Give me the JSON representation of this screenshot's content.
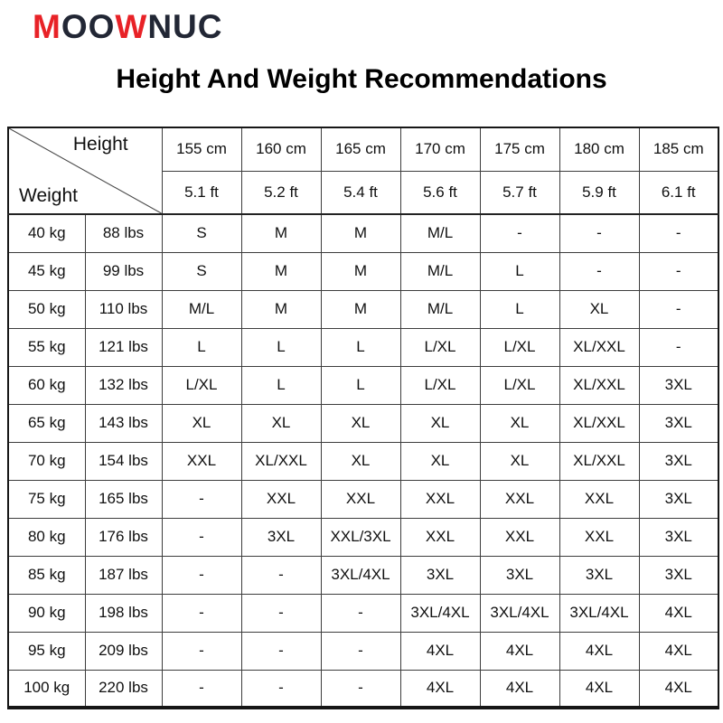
{
  "brand": {
    "name": "MOOWNUC",
    "segments": [
      {
        "text": "M",
        "color": "#e82227"
      },
      {
        "text": "OO",
        "color": "#222735"
      },
      {
        "text": "W",
        "color": "#e82227"
      },
      {
        "text": "NUC",
        "color": "#222735"
      }
    ]
  },
  "title": "Height And Weight Recommendations",
  "colors": {
    "background": "#ffffff",
    "title_text": "#000000",
    "table_border": "#3d3d3d",
    "brand_red": "#e82227",
    "brand_navy": "#222735"
  },
  "chart_data": {
    "type": "table",
    "title": "Height And Weight Recommendations",
    "corner": {
      "top_label": "Height",
      "bottom_label": "Weight"
    },
    "column_headers_cm": [
      "155 cm",
      "160 cm",
      "165 cm",
      "170 cm",
      "175 cm",
      "180 cm",
      "185 cm"
    ],
    "column_headers_ft": [
      "5.1 ft",
      "5.2 ft",
      "5.4 ft",
      "5.6 ft",
      "5.7 ft",
      "5.9 ft",
      "6.1 ft"
    ],
    "rows": [
      {
        "kg": "40 kg",
        "lbs": "88 lbs",
        "sizes": [
          "S",
          "M",
          "M",
          "M/L",
          "-",
          "-",
          "-"
        ]
      },
      {
        "kg": "45 kg",
        "lbs": "99 lbs",
        "sizes": [
          "S",
          "M",
          "M",
          "M/L",
          "L",
          "-",
          "-"
        ]
      },
      {
        "kg": "50 kg",
        "lbs": "110 lbs",
        "sizes": [
          "M/L",
          "M",
          "M",
          "M/L",
          "L",
          "XL",
          "-"
        ]
      },
      {
        "kg": "55 kg",
        "lbs": "121 lbs",
        "sizes": [
          "L",
          "L",
          "L",
          "L/XL",
          "L/XL",
          "XL/XXL",
          "-"
        ]
      },
      {
        "kg": "60 kg",
        "lbs": "132 lbs",
        "sizes": [
          "L/XL",
          "L",
          "L",
          "L/XL",
          "L/XL",
          "XL/XXL",
          "3XL"
        ]
      },
      {
        "kg": "65 kg",
        "lbs": "143 lbs",
        "sizes": [
          "XL",
          "XL",
          "XL",
          "XL",
          "XL",
          "XL/XXL",
          "3XL"
        ]
      },
      {
        "kg": "70 kg",
        "lbs": "154 lbs",
        "sizes": [
          "XXL",
          "XL/XXL",
          "XL",
          "XL",
          "XL",
          "XL/XXL",
          "3XL"
        ]
      },
      {
        "kg": "75 kg",
        "lbs": "165 lbs",
        "sizes": [
          "-",
          "XXL",
          "XXL",
          "XXL",
          "XXL",
          "XXL",
          "3XL"
        ]
      },
      {
        "kg": "80 kg",
        "lbs": "176 lbs",
        "sizes": [
          "-",
          "3XL",
          "XXL/3XL",
          "XXL",
          "XXL",
          "XXL",
          "3XL"
        ]
      },
      {
        "kg": "85 kg",
        "lbs": "187 lbs",
        "sizes": [
          "-",
          "-",
          "3XL/4XL",
          "3XL",
          "3XL",
          "3XL",
          "3XL"
        ]
      },
      {
        "kg": "90 kg",
        "lbs": "198 lbs",
        "sizes": [
          "-",
          "-",
          "-",
          "3XL/4XL",
          "3XL/4XL",
          "3XL/4XL",
          "4XL"
        ]
      },
      {
        "kg": "95 kg",
        "lbs": "209 lbs",
        "sizes": [
          "-",
          "-",
          "-",
          "4XL",
          "4XL",
          "4XL",
          "4XL"
        ]
      },
      {
        "kg": "100 kg",
        "lbs": "220 lbs",
        "sizes": [
          "-",
          "-",
          "-",
          "4XL",
          "4XL",
          "4XL",
          "4XL"
        ]
      }
    ]
  }
}
